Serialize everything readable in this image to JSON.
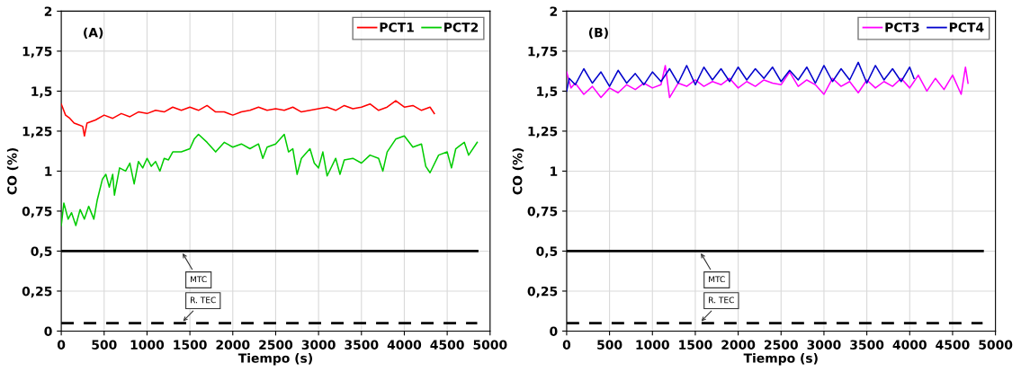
{
  "chart_data": [
    {
      "type": "line",
      "xlabel": "Tiempo (s)",
      "ylabel": "CO (%)",
      "xlim": [
        0,
        5000
      ],
      "ylim": [
        0,
        2
      ],
      "xticks": [
        0,
        500,
        1000,
        1500,
        2000,
        2500,
        3000,
        3500,
        4000,
        4500,
        5000
      ],
      "yticks": [
        0,
        {
          "value": 0.25,
          "label": "0,25"
        },
        {
          "value": 0.5,
          "label": "0,5"
        },
        {
          "value": 0.75,
          "label": "0,75"
        },
        1,
        {
          "value": 1.25,
          "label": "1,25"
        },
        {
          "value": 1.5,
          "label": "1,5"
        },
        {
          "value": 1.75,
          "label": "1,75"
        },
        2
      ],
      "grid": true,
      "legend": "top right",
      "line_style": "solid",
      "series": [
        {
          "name": "PCT1",
          "color": "#ff0000",
          "x": [
            0,
            50,
            100,
            150,
            200,
            250,
            270,
            300,
            400,
            500,
            600,
            700,
            800,
            900,
            1000,
            1100,
            1200,
            1300,
            1400,
            1500,
            1600,
            1700,
            1800,
            1900,
            2000,
            2100,
            2200,
            2300,
            2400,
            2500,
            2600,
            2700,
            2800,
            2900,
            3000,
            3100,
            3200,
            3300,
            3400,
            3500,
            3600,
            3700,
            3800,
            3900,
            4000,
            4100,
            4200,
            4300,
            4350
          ],
          "values": [
            1.42,
            1.35,
            1.33,
            1.3,
            1.29,
            1.28,
            1.22,
            1.3,
            1.32,
            1.35,
            1.33,
            1.36,
            1.34,
            1.37,
            1.36,
            1.38,
            1.37,
            1.4,
            1.38,
            1.4,
            1.38,
            1.41,
            1.37,
            1.37,
            1.35,
            1.37,
            1.38,
            1.4,
            1.38,
            1.39,
            1.38,
            1.4,
            1.37,
            1.38,
            1.39,
            1.4,
            1.38,
            1.41,
            1.39,
            1.4,
            1.42,
            1.38,
            1.4,
            1.44,
            1.4,
            1.41,
            1.38,
            1.4,
            1.36
          ]
        },
        {
          "name": "PCT2",
          "color": "#00cc00",
          "x": [
            0,
            30,
            80,
            120,
            170,
            220,
            270,
            320,
            380,
            420,
            480,
            520,
            560,
            600,
            620,
            680,
            750,
            800,
            850,
            900,
            950,
            1000,
            1050,
            1100,
            1150,
            1200,
            1250,
            1300,
            1400,
            1500,
            1550,
            1600,
            1700,
            1800,
            1900,
            2000,
            2100,
            2200,
            2300,
            2350,
            2400,
            2500,
            2600,
            2650,
            2700,
            2750,
            2800,
            2900,
            2950,
            3000,
            3050,
            3100,
            3200,
            3250,
            3300,
            3400,
            3500,
            3600,
            3700,
            3750,
            3800,
            3900,
            4000,
            4100,
            4200,
            4250,
            4300,
            4400,
            4500,
            4550,
            4600,
            4700,
            4750,
            4850
          ],
          "values": [
            0.66,
            0.8,
            0.7,
            0.74,
            0.66,
            0.76,
            0.7,
            0.78,
            0.7,
            0.82,
            0.95,
            0.98,
            0.9,
            0.98,
            0.85,
            1.02,
            1.0,
            1.05,
            0.92,
            1.06,
            1.02,
            1.08,
            1.03,
            1.06,
            1.0,
            1.08,
            1.07,
            1.12,
            1.12,
            1.14,
            1.2,
            1.23,
            1.18,
            1.12,
            1.18,
            1.15,
            1.17,
            1.14,
            1.17,
            1.08,
            1.15,
            1.17,
            1.23,
            1.12,
            1.14,
            0.98,
            1.08,
            1.14,
            1.05,
            1.02,
            1.12,
            0.97,
            1.08,
            0.98,
            1.07,
            1.08,
            1.05,
            1.1,
            1.08,
            1.0,
            1.12,
            1.2,
            1.22,
            1.15,
            1.17,
            1.03,
            0.99,
            1.1,
            1.12,
            1.02,
            1.14,
            1.18,
            1.1,
            1.18
          ]
        }
      ],
      "ref_lines": [
        {
          "axis": "y",
          "value": 0.5,
          "line_style": "solid",
          "color": "#000000",
          "label": "MTC"
        },
        {
          "axis": "y",
          "value": 0.05,
          "line_style": "dashed",
          "color": "#000000",
          "label": "R. TEC"
        }
      ],
      "annotations": [
        "(A)"
      ]
    },
    {
      "type": "line",
      "xlabel": "Tiempo (s)",
      "ylabel": "CO (%)",
      "xlim": [
        0,
        5000
      ],
      "ylim": [
        0,
        2
      ],
      "xticks": [
        0,
        500,
        1000,
        1500,
        2000,
        2500,
        3000,
        3500,
        4000,
        4500,
        5000
      ],
      "yticks": [
        0,
        {
          "value": 0.25,
          "label": "0,25"
        },
        {
          "value": 0.5,
          "label": "0,5"
        },
        {
          "value": 0.75,
          "label": "0,75"
        },
        1,
        {
          "value": 1.25,
          "label": "1,25"
        },
        {
          "value": 1.5,
          "label": "1,5"
        },
        {
          "value": 1.75,
          "label": "1,75"
        },
        2
      ],
      "grid": true,
      "legend": "top right",
      "line_style": "solid",
      "series": [
        {
          "name": "PCT3",
          "color": "#ff00ff",
          "x": [
            0,
            50,
            100,
            200,
            300,
            400,
            500,
            600,
            700,
            800,
            900,
            1000,
            1100,
            1150,
            1200,
            1300,
            1400,
            1500,
            1600,
            1700,
            1800,
            1900,
            2000,
            2100,
            2200,
            2300,
            2400,
            2500,
            2600,
            2700,
            2800,
            2900,
            3000,
            3100,
            3200,
            3300,
            3400,
            3500,
            3600,
            3700,
            3800,
            3900,
            4000,
            4100,
            4200,
            4300,
            4400,
            4500,
            4600,
            4650,
            4680
          ],
          "values": [
            1.62,
            1.52,
            1.55,
            1.48,
            1.53,
            1.46,
            1.52,
            1.49,
            1.54,
            1.51,
            1.55,
            1.52,
            1.54,
            1.66,
            1.46,
            1.55,
            1.53,
            1.57,
            1.53,
            1.56,
            1.54,
            1.58,
            1.52,
            1.56,
            1.53,
            1.57,
            1.55,
            1.54,
            1.62,
            1.53,
            1.57,
            1.54,
            1.48,
            1.58,
            1.53,
            1.56,
            1.49,
            1.57,
            1.52,
            1.56,
            1.53,
            1.58,
            1.52,
            1.6,
            1.5,
            1.58,
            1.51,
            1.6,
            1.48,
            1.65,
            1.55
          ]
        },
        {
          "name": "PCT4",
          "color": "#0000cc",
          "x": [
            0,
            30,
            100,
            200,
            300,
            400,
            500,
            600,
            700,
            800,
            900,
            1000,
            1100,
            1200,
            1300,
            1400,
            1500,
            1600,
            1700,
            1800,
            1900,
            2000,
            2100,
            2200,
            2300,
            2400,
            2500,
            2600,
            2700,
            2800,
            2900,
            3000,
            3100,
            3200,
            3300,
            3400,
            3500,
            3600,
            3700,
            3800,
            3900,
            4000,
            4050
          ],
          "values": [
            1.5,
            1.58,
            1.54,
            1.64,
            1.55,
            1.62,
            1.53,
            1.63,
            1.55,
            1.61,
            1.54,
            1.62,
            1.56,
            1.64,
            1.55,
            1.66,
            1.54,
            1.65,
            1.57,
            1.64,
            1.56,
            1.65,
            1.57,
            1.64,
            1.58,
            1.65,
            1.56,
            1.63,
            1.57,
            1.65,
            1.55,
            1.66,
            1.56,
            1.64,
            1.57,
            1.68,
            1.55,
            1.66,
            1.57,
            1.64,
            1.56,
            1.65,
            1.58
          ]
        }
      ],
      "ref_lines": [
        {
          "axis": "y",
          "value": 0.5,
          "line_style": "solid",
          "color": "#000000",
          "label": "MTC"
        },
        {
          "axis": "y",
          "value": 0.05,
          "line_style": "dashed",
          "color": "#000000",
          "label": "R. TEC"
        }
      ],
      "annotations": [
        "(B)"
      ]
    }
  ]
}
